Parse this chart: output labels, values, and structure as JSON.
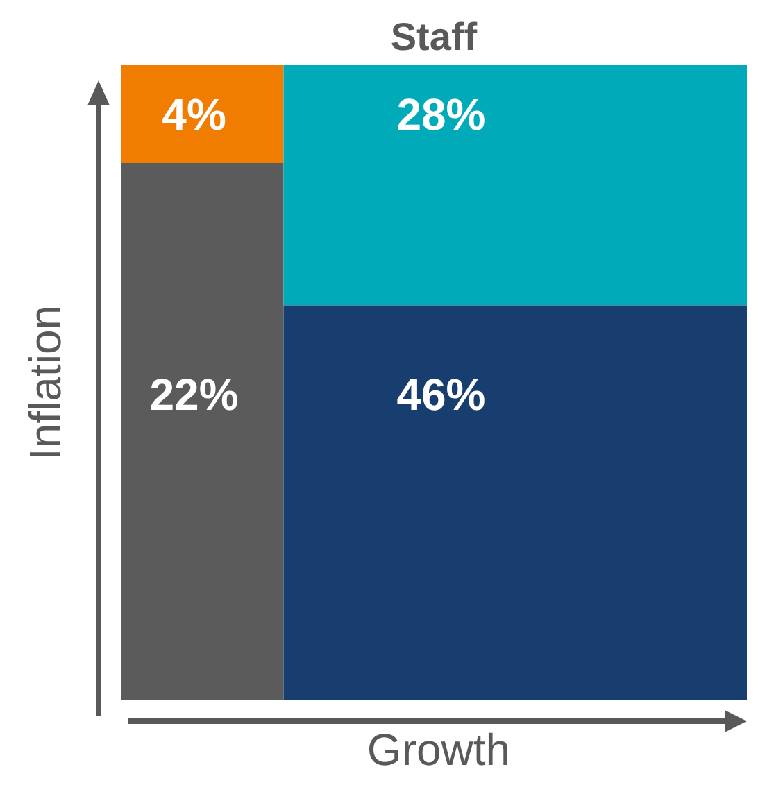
{
  "chart_data": {
    "type": "other",
    "title": "Staff",
    "xlabel": "Growth",
    "ylabel": "Inflation",
    "values": [
      4,
      28,
      22,
      46
    ],
    "colors": [
      "#f07c00",
      "#00aab9",
      "#5b5b5b",
      "#173e6e"
    ],
    "value_labels": [
      "4%",
      "28%",
      "22%",
      "46%"
    ]
  }
}
